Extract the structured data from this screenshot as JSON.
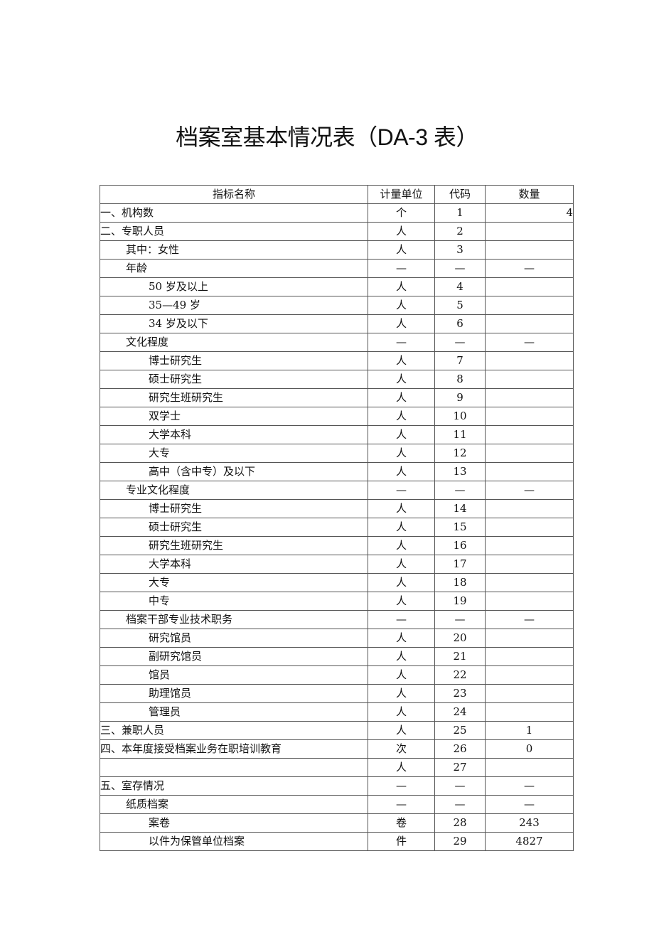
{
  "title": "档案室基本情况表（DA-3 表）",
  "table": {
    "headers": [
      "指标名称",
      "计量单位",
      "代码",
      "数量"
    ],
    "rows": [
      {
        "name": "一、机构数",
        "level": 0,
        "unit": "个",
        "code": "1",
        "qty": "4"
      },
      {
        "name": "二、专职人员",
        "level": 0,
        "unit": "人",
        "code": "2",
        "qty": ""
      },
      {
        "name": "其中：女性",
        "level": 1,
        "unit": "人",
        "code": "3",
        "qty": ""
      },
      {
        "name": "年龄",
        "level": 1,
        "unit": "—",
        "code": "—",
        "qty": "—"
      },
      {
        "name": "50 岁及以上",
        "level": 2,
        "unit": "人",
        "code": "4",
        "qty": ""
      },
      {
        "name": "35—49 岁",
        "level": 2,
        "unit": "人",
        "code": "5",
        "qty": ""
      },
      {
        "name": "34 岁及以下",
        "level": 2,
        "unit": "人",
        "code": "6",
        "qty": ""
      },
      {
        "name": "文化程度",
        "level": 1,
        "unit": "—",
        "code": "—",
        "qty": "—"
      },
      {
        "name": "博士研究生",
        "level": 2,
        "unit": "人",
        "code": "7",
        "qty": ""
      },
      {
        "name": "硕士研究生",
        "level": 2,
        "unit": "人",
        "code": "8",
        "qty": ""
      },
      {
        "name": "研究生班研究生",
        "level": 2,
        "unit": "人",
        "code": "9",
        "qty": ""
      },
      {
        "name": "双学士",
        "level": 2,
        "unit": "人",
        "code": "10",
        "qty": ""
      },
      {
        "name": "大学本科",
        "level": 2,
        "unit": "人",
        "code": "11",
        "qty": ""
      },
      {
        "name": "大专",
        "level": 2,
        "unit": "人",
        "code": "12",
        "qty": ""
      },
      {
        "name": "高中（含中专）及以下",
        "level": 2,
        "unit": "人",
        "code": "13",
        "qty": ""
      },
      {
        "name": "专业文化程度",
        "level": 1,
        "unit": "—",
        "code": "—",
        "qty": "—"
      },
      {
        "name": "博士研究生",
        "level": 2,
        "unit": "人",
        "code": "14",
        "qty": ""
      },
      {
        "name": "硕士研究生",
        "level": 2,
        "unit": "人",
        "code": "15",
        "qty": ""
      },
      {
        "name": "研究生班研究生",
        "level": 2,
        "unit": "人",
        "code": "16",
        "qty": ""
      },
      {
        "name": "大学本科",
        "level": 2,
        "unit": "人",
        "code": "17",
        "qty": ""
      },
      {
        "name": "大专",
        "level": 2,
        "unit": "人",
        "code": "18",
        "qty": ""
      },
      {
        "name": "中专",
        "level": 2,
        "unit": "人",
        "code": "19",
        "qty": ""
      },
      {
        "name": "档案干部专业技术职务",
        "level": 1,
        "unit": "—",
        "code": "—",
        "qty": "—"
      },
      {
        "name": "研究馆员",
        "level": 2,
        "unit": "人",
        "code": "20",
        "qty": ""
      },
      {
        "name": "副研究馆员",
        "level": 2,
        "unit": "人",
        "code": "21",
        "qty": ""
      },
      {
        "name": "馆员",
        "level": 2,
        "unit": "人",
        "code": "22",
        "qty": ""
      },
      {
        "name": "助理馆员",
        "level": 2,
        "unit": "人",
        "code": "23",
        "qty": ""
      },
      {
        "name": "管理员",
        "level": 2,
        "unit": "人",
        "code": "24",
        "qty": ""
      },
      {
        "name": "三、兼职人员",
        "level": 0,
        "unit": "人",
        "code": "25",
        "qty": "1"
      },
      {
        "name": "四、本年度接受档案业务在职培训教育",
        "level": 0,
        "unit": "次",
        "code": "26",
        "qty": "0"
      },
      {
        "name": "",
        "level": 0,
        "unit": "人",
        "code": "27",
        "qty": ""
      },
      {
        "name": "五、室存情况",
        "level": 0,
        "unit": "—",
        "code": "—",
        "qty": "—"
      },
      {
        "name": "纸质档案",
        "level": 1,
        "unit": "—",
        "code": "—",
        "qty": "—"
      },
      {
        "name": "案卷",
        "level": 2,
        "unit": "卷",
        "code": "28",
        "qty": "243"
      },
      {
        "name": "以件为保管单位档案",
        "level": 2,
        "unit": "件",
        "code": "29",
        "qty": "4827"
      }
    ]
  }
}
